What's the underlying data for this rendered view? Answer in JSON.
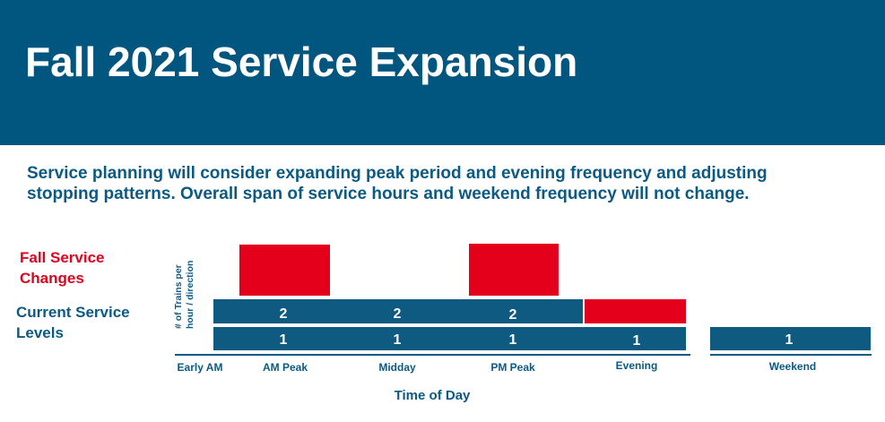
{
  "header": {
    "title": "Fall 2021 Service Expansion"
  },
  "body": {
    "lines": [
      "Service planning will consider expanding peak period and evening frequency and adjusting",
      "stopping patterns. Overall span of service hours and weekend frequency will not change."
    ]
  },
  "diagram": {
    "legend": {
      "changes": [
        "Fall Service",
        "Changes"
      ],
      "current": [
        "Current Service",
        "Levels"
      ]
    },
    "y_label": [
      "# of Trains per",
      "hour / direction"
    ],
    "x_label": "Time of Day",
    "categories": [
      "Early AM",
      "AM Peak",
      "Midday",
      "PM Peak",
      "Evening",
      "Weekend"
    ],
    "level_2": [
      2,
      2,
      2
    ],
    "level_1": [
      1,
      1,
      1,
      1
    ],
    "weekend": [
      1
    ]
  }
}
